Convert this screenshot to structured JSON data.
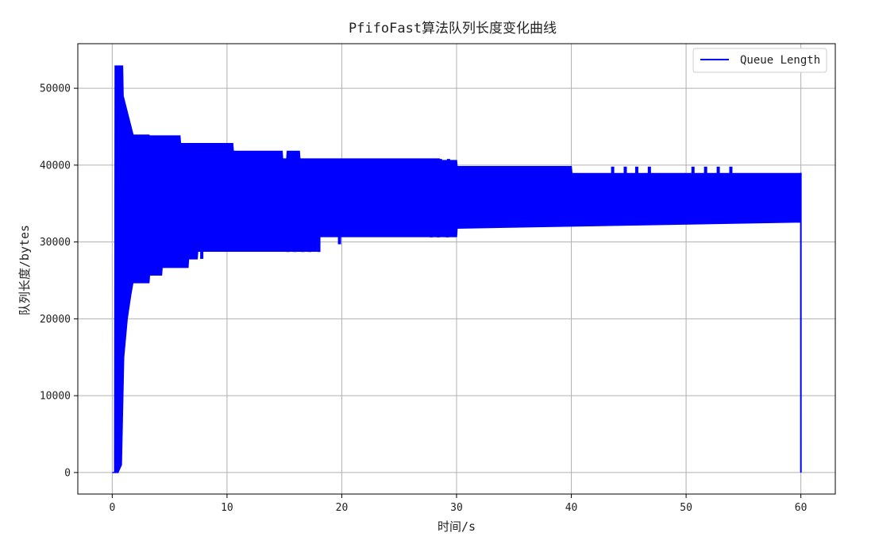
{
  "chart_data": {
    "type": "line",
    "title": "PfifoFast算法队列长度变化曲线",
    "xlabel": "时间/s",
    "ylabel": "队列长度/bytes",
    "xlim": [
      -3,
      63
    ],
    "ylim": [
      -2800,
      55800
    ],
    "xticks": [
      0,
      10,
      20,
      30,
      40,
      50,
      60
    ],
    "yticks": [
      0,
      10000,
      20000,
      30000,
      40000,
      50000
    ],
    "grid": true,
    "legend_position": "top-right",
    "colors": {
      "series": "#0000ff",
      "grid": "#b0b0b0",
      "axes": "#000000"
    },
    "series": [
      {
        "name": "Queue Length",
        "style": "oscillating band between lower and upper envelopes",
        "upper_envelope": {
          "x": [
            0.0,
            0.2,
            0.25,
            0.9,
            0.95,
            1.8,
            1.85,
            3.2,
            3.25,
            5.9,
            5.95,
            10.5,
            10.55,
            14.8,
            14.85,
            15.2,
            15.25,
            16.3,
            16.35,
            17.8,
            17.85,
            28.5,
            28.55,
            30.0,
            30.05,
            40.0,
            40.05,
            60.0,
            60.01
          ],
          "y": [
            0,
            0,
            52900,
            52900,
            49000,
            44000,
            43900,
            43900,
            43800,
            43800,
            42800,
            42800,
            41800,
            41800,
            40800,
            40800,
            41800,
            41800,
            40800,
            40800,
            40800,
            40800,
            40600,
            40600,
            39800,
            39800,
            38900,
            38900,
            0
          ]
        },
        "lower_envelope": {
          "x": [
            0.0,
            0.2,
            0.5,
            0.8,
            1.0,
            1.3,
            1.6,
            1.8,
            1.85,
            3.2,
            3.25,
            4.3,
            4.35,
            6.6,
            6.65,
            7.4,
            7.45,
            10.5,
            10.55,
            15.0,
            15.05,
            17.8,
            17.85,
            25.8,
            25.85,
            30.0,
            30.05,
            60.0,
            60.01
          ],
          "y": [
            0,
            0,
            0,
            1000,
            15000,
            20000,
            23000,
            24700,
            24700,
            24700,
            25700,
            25700,
            26700,
            26700,
            27800,
            27800,
            28800,
            28800,
            28800,
            28800,
            28800,
            28800,
            30700,
            30700,
            30700,
            30700,
            31800,
            32600,
            0
          ]
        },
        "spikes_upper": [
          {
            "x": 28.6,
            "y": 40800
          },
          {
            "x": 29.3,
            "y": 40800
          },
          {
            "x": 43.6,
            "y": 39800
          },
          {
            "x": 44.7,
            "y": 39800
          },
          {
            "x": 45.7,
            "y": 39800
          },
          {
            "x": 46.8,
            "y": 39800
          },
          {
            "x": 50.6,
            "y": 39800
          },
          {
            "x": 51.7,
            "y": 39800
          },
          {
            "x": 52.8,
            "y": 39800
          },
          {
            "x": 53.9,
            "y": 39800
          }
        ],
        "spikes_lower": [
          {
            "x": 7.8,
            "y": 27800
          },
          {
            "x": 15.3,
            "y": 28700
          },
          {
            "x": 15.9,
            "y": 28700
          },
          {
            "x": 16.6,
            "y": 28700
          },
          {
            "x": 17.2,
            "y": 28700
          },
          {
            "x": 18.0,
            "y": 28700
          },
          {
            "x": 19.8,
            "y": 29700
          },
          {
            "x": 27.8,
            "y": 30600
          },
          {
            "x": 28.4,
            "y": 30600
          },
          {
            "x": 29.2,
            "y": 30600
          }
        ]
      }
    ]
  }
}
